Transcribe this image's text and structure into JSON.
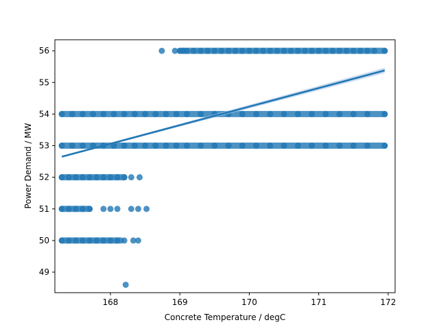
{
  "chart_data": {
    "type": "scatter",
    "title": "",
    "xlabel": "Concrete Temperature / degC",
    "ylabel": "Power Demand / MW",
    "xlim": [
      167.2,
      172.1
    ],
    "ylim": [
      48.35,
      56.35
    ],
    "xticks": [
      168,
      169,
      170,
      171,
      172
    ],
    "yticks": [
      49,
      50,
      51,
      52,
      53,
      54,
      55,
      56
    ],
    "grid": false,
    "legend": "none",
    "colors": {
      "points": "#1f77b4",
      "line": "#1f77b4",
      "ci_band": "#aec7e8"
    },
    "regression_line": {
      "x": [
        167.3,
        171.95
      ],
      "y": [
        52.65,
        55.38
      ]
    },
    "series": [
      {
        "points": [
          {
            "x": 168.74,
            "y": 56
          },
          {
            "x": 168.93,
            "y": 56
          },
          {
            "x": 169.0,
            "y": 56
          },
          {
            "x": 169.05,
            "y": 56
          },
          {
            "x": 169.1,
            "y": 56
          },
          {
            "x": 169.2,
            "y": 56
          },
          {
            "x": 169.3,
            "y": 56
          },
          {
            "x": 169.4,
            "y": 56
          },
          {
            "x": 169.5,
            "y": 56
          },
          {
            "x": 169.6,
            "y": 56
          },
          {
            "x": 169.7,
            "y": 56
          },
          {
            "x": 169.8,
            "y": 56
          },
          {
            "x": 169.9,
            "y": 56
          },
          {
            "x": 170.0,
            "y": 56
          },
          {
            "x": 170.1,
            "y": 56
          },
          {
            "x": 170.2,
            "y": 56
          },
          {
            "x": 170.3,
            "y": 56
          },
          {
            "x": 170.4,
            "y": 56
          },
          {
            "x": 170.5,
            "y": 56
          },
          {
            "x": 170.6,
            "y": 56
          },
          {
            "x": 170.7,
            "y": 56
          },
          {
            "x": 170.8,
            "y": 56
          },
          {
            "x": 170.9,
            "y": 56
          },
          {
            "x": 171.0,
            "y": 56
          },
          {
            "x": 171.1,
            "y": 56
          },
          {
            "x": 171.2,
            "y": 56
          },
          {
            "x": 171.3,
            "y": 56
          },
          {
            "x": 171.4,
            "y": 56
          },
          {
            "x": 171.5,
            "y": 56
          },
          {
            "x": 171.6,
            "y": 56
          },
          {
            "x": 171.7,
            "y": 56
          },
          {
            "x": 171.8,
            "y": 56
          },
          {
            "x": 171.95,
            "y": 56
          },
          {
            "x": 167.3,
            "y": 54
          },
          {
            "x": 167.45,
            "y": 54
          },
          {
            "x": 167.6,
            "y": 54
          },
          {
            "x": 167.75,
            "y": 54
          },
          {
            "x": 167.9,
            "y": 54
          },
          {
            "x": 168.05,
            "y": 54
          },
          {
            "x": 168.2,
            "y": 54
          },
          {
            "x": 168.35,
            "y": 54
          },
          {
            "x": 168.5,
            "y": 54
          },
          {
            "x": 168.65,
            "y": 54
          },
          {
            "x": 168.8,
            "y": 54
          },
          {
            "x": 168.95,
            "y": 54
          },
          {
            "x": 169.1,
            "y": 54
          },
          {
            "x": 169.3,
            "y": 54
          },
          {
            "x": 169.5,
            "y": 54
          },
          {
            "x": 169.7,
            "y": 54
          },
          {
            "x": 169.9,
            "y": 54
          },
          {
            "x": 170.1,
            "y": 54
          },
          {
            "x": 170.3,
            "y": 54
          },
          {
            "x": 170.5,
            "y": 54
          },
          {
            "x": 170.7,
            "y": 54
          },
          {
            "x": 170.9,
            "y": 54
          },
          {
            "x": 171.1,
            "y": 54
          },
          {
            "x": 171.3,
            "y": 54
          },
          {
            "x": 171.5,
            "y": 54
          },
          {
            "x": 171.7,
            "y": 54
          },
          {
            "x": 171.95,
            "y": 54
          },
          {
            "x": 167.3,
            "y": 53
          },
          {
            "x": 167.45,
            "y": 53
          },
          {
            "x": 167.6,
            "y": 53
          },
          {
            "x": 167.75,
            "y": 53
          },
          {
            "x": 167.9,
            "y": 53
          },
          {
            "x": 168.05,
            "y": 53
          },
          {
            "x": 168.2,
            "y": 53
          },
          {
            "x": 168.35,
            "y": 53
          },
          {
            "x": 168.5,
            "y": 53
          },
          {
            "x": 168.65,
            "y": 53
          },
          {
            "x": 168.8,
            "y": 53
          },
          {
            "x": 168.95,
            "y": 53
          },
          {
            "x": 169.1,
            "y": 53
          },
          {
            "x": 169.3,
            "y": 53
          },
          {
            "x": 169.5,
            "y": 53
          },
          {
            "x": 169.7,
            "y": 53
          },
          {
            "x": 169.9,
            "y": 53
          },
          {
            "x": 170.1,
            "y": 53
          },
          {
            "x": 170.3,
            "y": 53
          },
          {
            "x": 170.5,
            "y": 53
          },
          {
            "x": 170.7,
            "y": 53
          },
          {
            "x": 170.9,
            "y": 53
          },
          {
            "x": 171.1,
            "y": 53
          },
          {
            "x": 171.3,
            "y": 53
          },
          {
            "x": 171.5,
            "y": 53
          },
          {
            "x": 171.7,
            "y": 53
          },
          {
            "x": 171.95,
            "y": 53
          },
          {
            "x": 167.3,
            "y": 52
          },
          {
            "x": 167.4,
            "y": 52
          },
          {
            "x": 167.5,
            "y": 52
          },
          {
            "x": 167.6,
            "y": 52
          },
          {
            "x": 167.7,
            "y": 52
          },
          {
            "x": 167.8,
            "y": 52
          },
          {
            "x": 167.9,
            "y": 52
          },
          {
            "x": 168.0,
            "y": 52
          },
          {
            "x": 168.1,
            "y": 52
          },
          {
            "x": 168.2,
            "y": 52
          },
          {
            "x": 168.3,
            "y": 52
          },
          {
            "x": 168.42,
            "y": 52
          },
          {
            "x": 167.3,
            "y": 51
          },
          {
            "x": 167.4,
            "y": 51
          },
          {
            "x": 167.5,
            "y": 51
          },
          {
            "x": 167.6,
            "y": 51
          },
          {
            "x": 167.7,
            "y": 51
          },
          {
            "x": 167.9,
            "y": 51
          },
          {
            "x": 168.0,
            "y": 51
          },
          {
            "x": 168.1,
            "y": 51
          },
          {
            "x": 168.3,
            "y": 51
          },
          {
            "x": 168.4,
            "y": 51
          },
          {
            "x": 168.52,
            "y": 51
          },
          {
            "x": 167.3,
            "y": 50
          },
          {
            "x": 167.4,
            "y": 50
          },
          {
            "x": 167.5,
            "y": 50
          },
          {
            "x": 167.6,
            "y": 50
          },
          {
            "x": 167.7,
            "y": 50
          },
          {
            "x": 167.8,
            "y": 50
          },
          {
            "x": 167.9,
            "y": 50
          },
          {
            "x": 168.0,
            "y": 50
          },
          {
            "x": 168.1,
            "y": 50
          },
          {
            "x": 168.2,
            "y": 50
          },
          {
            "x": 168.33,
            "y": 50
          },
          {
            "x": 168.4,
            "y": 50
          },
          {
            "x": 168.22,
            "y": 48.6
          }
        ],
        "bands": [
          {
            "y": 56,
            "x_start": 169.0,
            "x_end": 171.95
          },
          {
            "y": 54,
            "x_start": 167.3,
            "x_end": 171.95
          },
          {
            "y": 53,
            "x_start": 167.3,
            "x_end": 171.95
          },
          {
            "y": 52,
            "x_start": 167.3,
            "x_end": 168.2
          },
          {
            "y": 51,
            "x_start": 167.3,
            "x_end": 167.7
          },
          {
            "y": 50,
            "x_start": 167.3,
            "x_end": 168.15
          }
        ]
      }
    ]
  }
}
